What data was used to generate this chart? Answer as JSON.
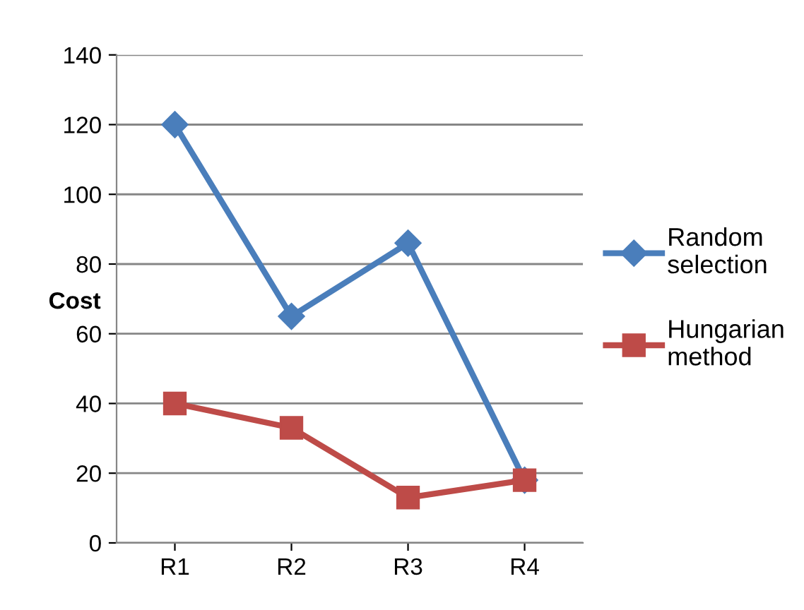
{
  "chart_data": {
    "type": "line",
    "ylabel": "Cost",
    "categories": [
      "R1",
      "R2",
      "R3",
      "R4"
    ],
    "series": [
      {
        "name": "Random selection",
        "color": "#4a7ebb",
        "marker": "diamond",
        "values": [
          120,
          65,
          86,
          18
        ]
      },
      {
        "name": "Hungarian method",
        "color": "#be4b48",
        "marker": "square",
        "values": [
          40,
          33,
          13,
          18
        ]
      }
    ],
    "ylim": [
      0,
      140
    ],
    "yticks": [
      0,
      20,
      40,
      60,
      80,
      100,
      120,
      140
    ],
    "grid": "y",
    "legend": "right",
    "line_style": "solid"
  }
}
